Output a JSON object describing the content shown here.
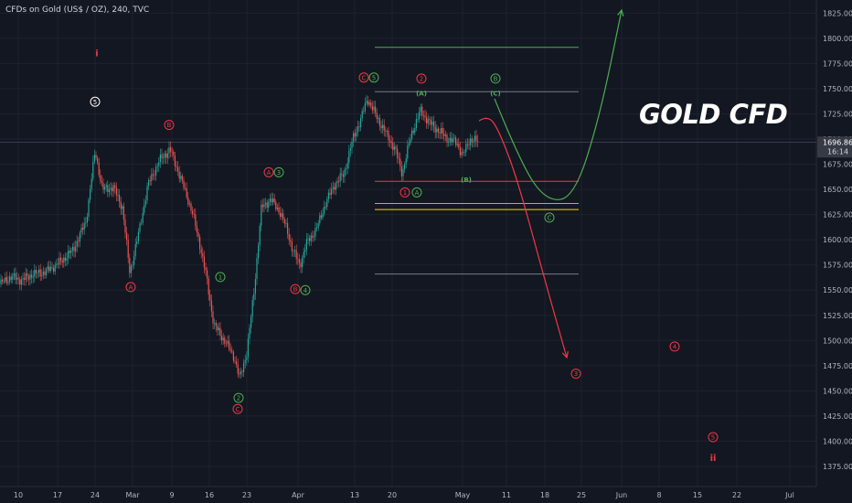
{
  "header": {
    "symbol": "CFDs on Gold (US$ / OZ), 240, TVC"
  },
  "watermark": "GOLD CFD",
  "colors": {
    "background": "#131722",
    "up": "#26a69a",
    "down": "#ef5350",
    "green": "#4caf50",
    "red": "#f23645",
    "yellow": "#ffd600",
    "orange": "#ff9800",
    "grey": "#787b86"
  },
  "chart_data": {
    "type": "candlestick",
    "ylim": [
      1355,
      1838
    ],
    "y_ticks": [
      "1825.00",
      "1800.00",
      "1775.00",
      "1750.00",
      "1725.00",
      "1700.00",
      "1675.00",
      "1650.00",
      "1625.00",
      "1600.00",
      "1575.00",
      "1550.00",
      "1525.00",
      "1500.00",
      "1475.00",
      "1450.00",
      "1425.00",
      "1400.00",
      "1375.00"
    ],
    "x_ticks": [
      "10",
      "17",
      "24",
      "Mar",
      "9",
      "16",
      "23",
      "Apr",
      "13",
      "20",
      "May",
      "11",
      "18",
      "25",
      "Jun",
      "8",
      "15",
      "22",
      "Jul"
    ],
    "last_price_label": "1696.86",
    "countdown_label": "16:14",
    "price_path": [
      [
        0,
        1556
      ],
      [
        12,
        1563
      ],
      [
        24,
        1560
      ],
      [
        36,
        1566
      ],
      [
        50,
        1568
      ],
      [
        66,
        1578
      ],
      [
        80,
        1590
      ],
      [
        94,
        1618
      ],
      [
        104,
        1688
      ],
      [
        112,
        1650
      ],
      [
        124,
        1652
      ],
      [
        134,
        1632
      ],
      [
        142,
        1567
      ],
      [
        152,
        1608
      ],
      [
        162,
        1655
      ],
      [
        174,
        1678
      ],
      [
        186,
        1690
      ],
      [
        198,
        1660
      ],
      [
        210,
        1628
      ],
      [
        218,
        1598
      ],
      [
        226,
        1562
      ],
      [
        234,
        1515
      ],
      [
        240,
        1508
      ],
      [
        248,
        1496
      ],
      [
        256,
        1484
      ],
      [
        262,
        1462
      ],
      [
        270,
        1488
      ],
      [
        278,
        1550
      ],
      [
        286,
        1632
      ],
      [
        296,
        1640
      ],
      [
        306,
        1628
      ],
      [
        314,
        1610
      ],
      [
        320,
        1590
      ],
      [
        328,
        1575
      ],
      [
        336,
        1598
      ],
      [
        346,
        1610
      ],
      [
        356,
        1636
      ],
      [
        366,
        1655
      ],
      [
        376,
        1665
      ],
      [
        386,
        1700
      ],
      [
        394,
        1718
      ],
      [
        402,
        1740
      ],
      [
        412,
        1722
      ],
      [
        422,
        1706
      ],
      [
        432,
        1690
      ],
      [
        440,
        1666
      ],
      [
        450,
        1705
      ],
      [
        460,
        1728
      ],
      [
        470,
        1716
      ],
      [
        480,
        1708
      ],
      [
        490,
        1700
      ],
      [
        500,
        1696
      ],
      [
        506,
        1683
      ],
      [
        514,
        1700
      ],
      [
        524,
        1697
      ]
    ],
    "projections": [
      {
        "name": "bullish",
        "color": "green",
        "points": [
          [
            541,
            1740
          ],
          [
            570,
            1675
          ],
          [
            598,
            1638
          ],
          [
            628,
            1642
          ],
          [
            656,
            1722
          ],
          [
            680,
            1828
          ]
        ]
      },
      {
        "name": "bearish",
        "color": "red",
        "points": [
          [
            524,
            1718
          ],
          [
            534,
            1724
          ],
          [
            546,
            1708
          ],
          [
            566,
            1660
          ],
          [
            596,
            1560
          ],
          [
            620,
            1483
          ]
        ]
      }
    ],
    "levels": [
      {
        "y": 1791,
        "color": "green",
        "x0": 410,
        "x1": 633
      },
      {
        "y": 1747,
        "color": "grey",
        "x0": 410,
        "x1": 633
      },
      {
        "y": 1658,
        "color": "red",
        "x0": 410,
        "x1": 633
      },
      {
        "y": 1636,
        "color": "orange",
        "x0": 410,
        "x1": 633
      },
      {
        "y": 1630,
        "color": "yellow",
        "x0": 410,
        "x1": 633
      },
      {
        "y": 1566,
        "color": "grey",
        "x0": 410,
        "x1": 633
      },
      {
        "y": 1697,
        "color": "grey",
        "x0": 0,
        "x1": 893
      }
    ],
    "annotations": [
      {
        "text": "i",
        "x": 106,
        "y": 1785,
        "color": "red",
        "circled": false
      },
      {
        "text": "5",
        "x": 104,
        "y": 1737,
        "color": "white",
        "circled": true
      },
      {
        "text": "B",
        "x": 185,
        "y": 1714,
        "color": "red",
        "circled": true
      },
      {
        "text": "A",
        "x": 143,
        "y": 1553,
        "color": "red",
        "circled": true
      },
      {
        "text": "A",
        "x": 294,
        "y": 1667,
        "color": "red",
        "circled": true
      },
      {
        "text": "3",
        "x": 305,
        "y": 1667,
        "color": "green",
        "circled": true
      },
      {
        "text": "1",
        "x": 241,
        "y": 1563,
        "color": "green",
        "circled": true
      },
      {
        "text": "2",
        "x": 261,
        "y": 1443,
        "color": "green",
        "circled": true
      },
      {
        "text": "C",
        "x": 260,
        "y": 1432,
        "color": "red",
        "circled": true
      },
      {
        "text": "B",
        "x": 323,
        "y": 1551,
        "color": "red",
        "circled": true
      },
      {
        "text": "4",
        "x": 334,
        "y": 1550,
        "color": "green",
        "circled": true
      },
      {
        "text": "C",
        "x": 398,
        "y": 1761,
        "color": "red",
        "circled": true
      },
      {
        "text": "5",
        "x": 409,
        "y": 1761,
        "color": "green",
        "circled": true
      },
      {
        "text": "2",
        "x": 461,
        "y": 1760,
        "color": "red",
        "circled": true
      },
      {
        "text": "(A)",
        "x": 461,
        "y": 1746,
        "color": "green",
        "circled": false
      },
      {
        "text": "1",
        "x": 443,
        "y": 1647,
        "color": "red",
        "circled": true
      },
      {
        "text": "A",
        "x": 456,
        "y": 1647,
        "color": "green",
        "circled": true
      },
      {
        "text": "(B)",
        "x": 510,
        "y": 1660,
        "color": "green",
        "circled": false
      },
      {
        "text": "B",
        "x": 542,
        "y": 1760,
        "color": "green",
        "circled": true
      },
      {
        "text": "(C)",
        "x": 542,
        "y": 1746,
        "color": "green",
        "circled": false
      },
      {
        "text": "C",
        "x": 601,
        "y": 1622,
        "color": "green",
        "circled": true
      },
      {
        "text": "3",
        "x": 630,
        "y": 1467,
        "color": "red",
        "circled": true
      },
      {
        "text": "4",
        "x": 738,
        "y": 1494,
        "color": "red",
        "circled": true
      },
      {
        "text": "5",
        "x": 780,
        "y": 1404,
        "color": "red",
        "circled": true
      },
      {
        "text": "ii",
        "x": 780,
        "y": 1383,
        "color": "red",
        "circled": false
      }
    ]
  }
}
